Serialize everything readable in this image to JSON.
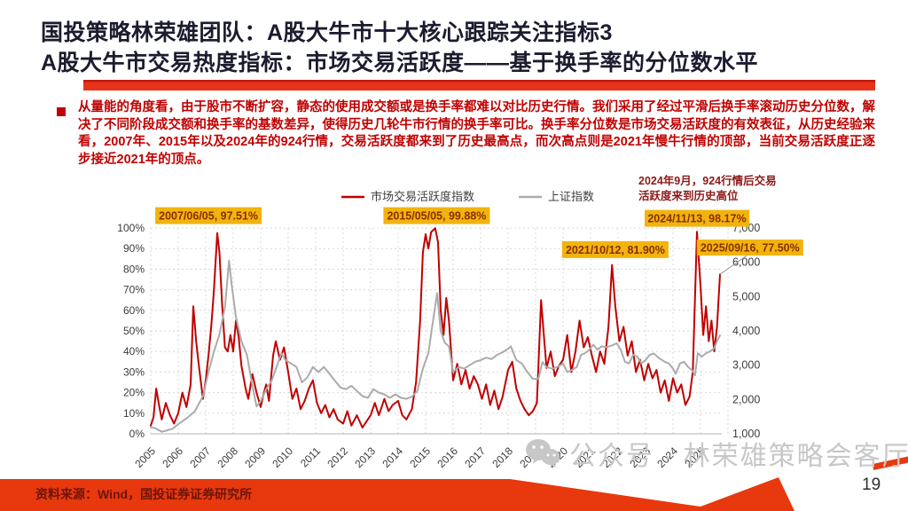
{
  "header": {
    "title_line1": "国投策略林荣雄团队：A股大牛市十大核心跟踪关注指标3",
    "title_line2": "A股大牛市交易热度指标：市场交易活跃度——基于换手率的分位数水平"
  },
  "body": {
    "bullet_paragraph": "从量能的角度看，由于股市不断扩容，静态的使用成交额或是换手率都难以对比历史行情。我们采用了经过平滑后换手率滚动历史分位数，解决了不同阶段成交额和换手率的基数差异，使得历史几轮牛市行情的换手率可比。换手率分位数是市场交易活跃度的有效表征，从历史经验来看，2007年、2015年以及2024年的924行情，交易活跃度都来到了历史最高点，而次高点则是2021年慢牛行情的顶部，当前交易活跃度正逐步接近2021年的顶点。"
  },
  "footer": {
    "source": "资料来源：Wind，国投证券证券研究所",
    "page": "19",
    "watermark": "公众号 · 林荣雄策略会客厅"
  },
  "colors": {
    "title": "#1b1c2e",
    "body_text": "#c00000",
    "underline_bar": "#e6341a",
    "footer_band": "#e8380d"
  },
  "chart_data": {
    "type": "line",
    "title": "",
    "legend_position": "top",
    "grid": "dashed",
    "x_tick_labels": [
      "2005",
      "2006",
      "2007",
      "2008",
      "2009",
      "2010",
      "2011",
      "2012",
      "2013",
      "2014",
      "2015",
      "2016",
      "2017",
      "2018",
      "2019",
      "2020",
      "2021",
      "2022",
      "2023",
      "2024",
      "2025"
    ],
    "left_axis": {
      "min": 0,
      "max": 100,
      "step": 10,
      "tick_labels": [
        "0%",
        "10%",
        "20%",
        "30%",
        "40%",
        "50%",
        "60%",
        "70%",
        "80%",
        "90%",
        "100%"
      ]
    },
    "right_axis": {
      "min": 1000,
      "max": 7000,
      "step": 1000,
      "tick_labels": [
        "1,000",
        "2,000",
        "3,000",
        "4,000",
        "5,000",
        "6,000",
        "7,000"
      ]
    },
    "series": [
      {
        "name": "市场交易活跃度指数",
        "color": "#c00000",
        "axis": "left",
        "points": [
          [
            2005.0,
            4
          ],
          [
            2005.1,
            8
          ],
          [
            2005.2,
            22
          ],
          [
            2005.3,
            14
          ],
          [
            2005.4,
            7
          ],
          [
            2005.55,
            15
          ],
          [
            2005.7,
            9
          ],
          [
            2005.85,
            5
          ],
          [
            2006.0,
            10
          ],
          [
            2006.15,
            20
          ],
          [
            2006.3,
            13
          ],
          [
            2006.45,
            24
          ],
          [
            2006.55,
            62
          ],
          [
            2006.65,
            45
          ],
          [
            2006.75,
            33
          ],
          [
            2006.9,
            17
          ],
          [
            2007.0,
            26
          ],
          [
            2007.1,
            38
          ],
          [
            2007.2,
            52
          ],
          [
            2007.3,
            70
          ],
          [
            2007.42,
            97.5
          ],
          [
            2007.5,
            88
          ],
          [
            2007.6,
            62
          ],
          [
            2007.7,
            42
          ],
          [
            2007.8,
            40
          ],
          [
            2007.9,
            48
          ],
          [
            2008.0,
            40
          ],
          [
            2008.1,
            55
          ],
          [
            2008.2,
            47
          ],
          [
            2008.3,
            33
          ],
          [
            2008.45,
            22
          ],
          [
            2008.55,
            17
          ],
          [
            2008.7,
            29
          ],
          [
            2008.85,
            20
          ],
          [
            2009.0,
            13
          ],
          [
            2009.1,
            19
          ],
          [
            2009.2,
            24
          ],
          [
            2009.3,
            16
          ],
          [
            2009.45,
            38
          ],
          [
            2009.55,
            45
          ],
          [
            2009.7,
            36
          ],
          [
            2009.85,
            42
          ],
          [
            2010.0,
            30
          ],
          [
            2010.15,
            17
          ],
          [
            2010.3,
            22
          ],
          [
            2010.45,
            12
          ],
          [
            2010.6,
            16
          ],
          [
            2010.75,
            22
          ],
          [
            2010.9,
            26
          ],
          [
            2011.05,
            15
          ],
          [
            2011.2,
            10
          ],
          [
            2011.35,
            14
          ],
          [
            2011.5,
            8
          ],
          [
            2011.65,
            12
          ],
          [
            2011.8,
            7
          ],
          [
            2012.0,
            5
          ],
          [
            2012.15,
            11
          ],
          [
            2012.3,
            4
          ],
          [
            2012.5,
            9
          ],
          [
            2012.7,
            3
          ],
          [
            2012.85,
            6
          ],
          [
            2013.0,
            9
          ],
          [
            2013.15,
            15
          ],
          [
            2013.3,
            9
          ],
          [
            2013.5,
            17
          ],
          [
            2013.65,
            11
          ],
          [
            2013.8,
            14
          ],
          [
            2014.0,
            16
          ],
          [
            2014.15,
            9
          ],
          [
            2014.3,
            7
          ],
          [
            2014.5,
            12
          ],
          [
            2014.65,
            25
          ],
          [
            2014.8,
            55
          ],
          [
            2014.9,
            88
          ],
          [
            2015.0,
            97
          ],
          [
            2015.1,
            90
          ],
          [
            2015.2,
            98
          ],
          [
            2015.35,
            99.9
          ],
          [
            2015.45,
            93
          ],
          [
            2015.55,
            60
          ],
          [
            2015.65,
            48
          ],
          [
            2015.75,
            66
          ],
          [
            2015.85,
            55
          ],
          [
            2016.0,
            26
          ],
          [
            2016.15,
            34
          ],
          [
            2016.3,
            24
          ],
          [
            2016.45,
            31
          ],
          [
            2016.6,
            22
          ],
          [
            2016.75,
            28
          ],
          [
            2016.9,
            24
          ],
          [
            2017.05,
            17
          ],
          [
            2017.2,
            24
          ],
          [
            2017.35,
            14
          ],
          [
            2017.5,
            21
          ],
          [
            2017.65,
            12
          ],
          [
            2017.8,
            18
          ],
          [
            2018.0,
            31
          ],
          [
            2018.15,
            35
          ],
          [
            2018.3,
            22
          ],
          [
            2018.45,
            16
          ],
          [
            2018.6,
            12
          ],
          [
            2018.75,
            9
          ],
          [
            2018.9,
            11
          ],
          [
            2019.05,
            15
          ],
          [
            2019.2,
            65
          ],
          [
            2019.3,
            48
          ],
          [
            2019.4,
            32
          ],
          [
            2019.55,
            40
          ],
          [
            2019.7,
            28
          ],
          [
            2019.85,
            33
          ],
          [
            2020.0,
            36
          ],
          [
            2020.15,
            48
          ],
          [
            2020.3,
            30
          ],
          [
            2020.45,
            40
          ],
          [
            2020.6,
            55
          ],
          [
            2020.75,
            42
          ],
          [
            2020.9,
            47
          ],
          [
            2021.05,
            38
          ],
          [
            2021.2,
            30
          ],
          [
            2021.35,
            40
          ],
          [
            2021.5,
            34
          ],
          [
            2021.65,
            52
          ],
          [
            2021.78,
            82
          ],
          [
            2021.9,
            62
          ],
          [
            2022.05,
            45
          ],
          [
            2022.2,
            52
          ],
          [
            2022.35,
            38
          ],
          [
            2022.5,
            45
          ],
          [
            2022.65,
            30
          ],
          [
            2022.8,
            36
          ],
          [
            2022.95,
            26
          ],
          [
            2023.1,
            34
          ],
          [
            2023.25,
            27
          ],
          [
            2023.4,
            31
          ],
          [
            2023.55,
            20
          ],
          [
            2023.7,
            26
          ],
          [
            2023.85,
            16
          ],
          [
            2024.0,
            27
          ],
          [
            2024.15,
            20
          ],
          [
            2024.3,
            24
          ],
          [
            2024.45,
            14
          ],
          [
            2024.6,
            18
          ],
          [
            2024.72,
            30
          ],
          [
            2024.87,
            98.2
          ],
          [
            2025.0,
            72
          ],
          [
            2025.1,
            48
          ],
          [
            2025.2,
            62
          ],
          [
            2025.3,
            45
          ],
          [
            2025.4,
            55
          ],
          [
            2025.5,
            40
          ],
          [
            2025.6,
            52
          ],
          [
            2025.71,
            77.5
          ]
        ]
      },
      {
        "name": "上证指数",
        "color": "#ababab",
        "axis": "right",
        "points": [
          [
            2005.0,
            1200
          ],
          [
            2005.2,
            1150
          ],
          [
            2005.4,
            1060
          ],
          [
            2005.6,
            1100
          ],
          [
            2005.8,
            1150
          ],
          [
            2006.0,
            1280
          ],
          [
            2006.3,
            1450
          ],
          [
            2006.6,
            1650
          ],
          [
            2006.9,
            2100
          ],
          [
            2007.1,
            2800
          ],
          [
            2007.3,
            3400
          ],
          [
            2007.5,
            3900
          ],
          [
            2007.7,
            4700
          ],
          [
            2007.8,
            5600
          ],
          [
            2007.85,
            6050
          ],
          [
            2007.95,
            5300
          ],
          [
            2008.1,
            4400
          ],
          [
            2008.3,
            3700
          ],
          [
            2008.5,
            3300
          ],
          [
            2008.7,
            2400
          ],
          [
            2008.85,
            1800
          ],
          [
            2009.0,
            1950
          ],
          [
            2009.2,
            2300
          ],
          [
            2009.4,
            2550
          ],
          [
            2009.6,
            3000
          ],
          [
            2009.75,
            3350
          ],
          [
            2009.9,
            3150
          ],
          [
            2010.1,
            3050
          ],
          [
            2010.3,
            2950
          ],
          [
            2010.5,
            2500
          ],
          [
            2010.7,
            2650
          ],
          [
            2010.9,
            2950
          ],
          [
            2011.1,
            2800
          ],
          [
            2011.3,
            2950
          ],
          [
            2011.5,
            2750
          ],
          [
            2011.7,
            2550
          ],
          [
            2011.9,
            2350
          ],
          [
            2012.1,
            2300
          ],
          [
            2012.3,
            2400
          ],
          [
            2012.5,
            2250
          ],
          [
            2012.7,
            2100
          ],
          [
            2012.9,
            2050
          ],
          [
            2013.1,
            2300
          ],
          [
            2013.3,
            2200
          ],
          [
            2013.5,
            2150
          ],
          [
            2013.7,
            2050
          ],
          [
            2013.9,
            2150
          ],
          [
            2014.1,
            2050
          ],
          [
            2014.3,
            2020
          ],
          [
            2014.5,
            2080
          ],
          [
            2014.7,
            2250
          ],
          [
            2014.9,
            2900
          ],
          [
            2015.1,
            3350
          ],
          [
            2015.25,
            4200
          ],
          [
            2015.42,
            5100
          ],
          [
            2015.55,
            4000
          ],
          [
            2015.7,
            3650
          ],
          [
            2015.85,
            3550
          ],
          [
            2016.0,
            2800
          ],
          [
            2016.2,
            2950
          ],
          [
            2016.4,
            2900
          ],
          [
            2016.6,
            3000
          ],
          [
            2016.8,
            3100
          ],
          [
            2017.0,
            3150
          ],
          [
            2017.2,
            3220
          ],
          [
            2017.4,
            3180
          ],
          [
            2017.6,
            3300
          ],
          [
            2017.8,
            3380
          ],
          [
            2018.0,
            3480
          ],
          [
            2018.1,
            3550
          ],
          [
            2018.3,
            3150
          ],
          [
            2018.5,
            3050
          ],
          [
            2018.7,
            2800
          ],
          [
            2018.9,
            2600
          ],
          [
            2019.1,
            2600
          ],
          [
            2019.25,
            3090
          ],
          [
            2019.4,
            2950
          ],
          [
            2019.6,
            2900
          ],
          [
            2019.8,
            2950
          ],
          [
            2020.0,
            3050
          ],
          [
            2020.15,
            2800
          ],
          [
            2020.3,
            2850
          ],
          [
            2020.5,
            2950
          ],
          [
            2020.65,
            3300
          ],
          [
            2020.8,
            3350
          ],
          [
            2020.95,
            3450
          ],
          [
            2021.1,
            3600
          ],
          [
            2021.25,
            3450
          ],
          [
            2021.4,
            3550
          ],
          [
            2021.6,
            3530
          ],
          [
            2021.8,
            3580
          ],
          [
            2021.95,
            3640
          ],
          [
            2022.1,
            3450
          ],
          [
            2022.25,
            3100
          ],
          [
            2022.4,
            3050
          ],
          [
            2022.55,
            3300
          ],
          [
            2022.7,
            3250
          ],
          [
            2022.85,
            3050
          ],
          [
            2023.0,
            3150
          ],
          [
            2023.15,
            3300
          ],
          [
            2023.3,
            3340
          ],
          [
            2023.5,
            3200
          ],
          [
            2023.7,
            3100
          ],
          [
            2023.85,
            3050
          ],
          [
            2024.0,
            2900
          ],
          [
            2024.1,
            2750
          ],
          [
            2024.25,
            3050
          ],
          [
            2024.4,
            3100
          ],
          [
            2024.55,
            2950
          ],
          [
            2024.7,
            2850
          ],
          [
            2024.8,
            2700
          ],
          [
            2024.9,
            3350
          ],
          [
            2025.05,
            3250
          ],
          [
            2025.2,
            3350
          ],
          [
            2025.35,
            3400
          ],
          [
            2025.5,
            3500
          ],
          [
            2025.6,
            3700
          ],
          [
            2025.71,
            3870
          ]
        ]
      }
    ],
    "annotations": [
      {
        "text": "2007/06/05, 97.51%",
        "ax": 2007.1,
        "ay": 106,
        "w": 120,
        "h": 19
      },
      {
        "text": "2015/05/05, 99.88%",
        "ax": 2015.4,
        "ay": 106,
        "w": 120,
        "h": 19
      },
      {
        "text": "2021/10/12, 81.90%",
        "ax": 2021.9,
        "ay": 89.5,
        "w": 120,
        "h": 19
      },
      {
        "text": "2024/11/13, 98.17%",
        "ax": 2024.87,
        "ay": 104.7,
        "w": 118,
        "h": 19
      },
      {
        "text": "2025/09/16, 77.50%",
        "ax": 2026.8,
        "ay": 90.5,
        "w": 120,
        "h": 18
      }
    ],
    "annotation_style": {
      "bg": "#f1b40e",
      "fg": "#8b2e00"
    },
    "note": {
      "lines": [
        "2024年9月，924行情后交易",
        "活跃度来到历史高位"
      ],
      "color": "#8b1a1a"
    }
  }
}
